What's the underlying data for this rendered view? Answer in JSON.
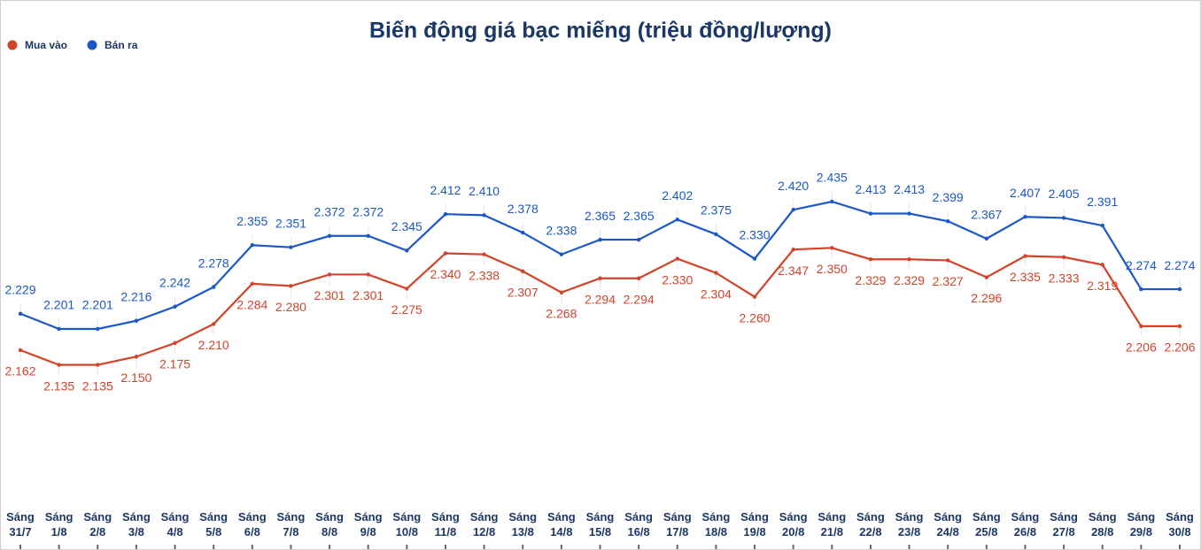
{
  "chart_data": {
    "type": "line",
    "title": "Biến động giá bạc miếng (triệu đồng/lượng)",
    "legend": "top-left",
    "categories": [
      "Sáng 31/7",
      "Sáng 1/8",
      "Sáng 2/8",
      "Sáng 3/8",
      "Sáng 4/8",
      "Sáng 5/8",
      "Sáng 6/8",
      "Sáng 7/8",
      "Sáng 8/8",
      "Sáng 9/8",
      "Sáng 10/8",
      "Sáng 11/8",
      "Sáng 12/8",
      "Sáng 13/8",
      "Sáng 14/8",
      "Sáng 15/8",
      "Sáng 16/8",
      "Sáng 17/8",
      "Sáng 18/8",
      "Sáng 19/8",
      "Sáng 20/8",
      "Sáng 21/8",
      "Sáng 22/8",
      "Sáng 23/8",
      "Sáng 24/8",
      "Sáng 25/8",
      "Sáng 26/8",
      "Sáng 27/8",
      "Sáng 28/8",
      "Sáng 29/8",
      "Sáng 30/8"
    ],
    "series": [
      {
        "name": "Mua vào",
        "color": "#d2432a",
        "values": [
          2.162,
          2.135,
          2.135,
          2.15,
          2.175,
          2.21,
          2.284,
          2.28,
          2.301,
          2.301,
          2.275,
          2.34,
          2.338,
          2.307,
          2.268,
          2.294,
          2.294,
          2.33,
          2.304,
          2.26,
          2.347,
          2.35,
          2.329,
          2.329,
          2.327,
          2.296,
          2.335,
          2.333,
          2.319,
          2.206,
          2.206
        ],
        "value_labels": [
          "2.162",
          "2.135",
          "2.135",
          "2.150",
          "2.175",
          "2.210",
          "2.284",
          "2.280",
          "2.301",
          "2.301",
          "2.275",
          "2.340",
          "2.338",
          "2.307",
          "2.268",
          "2.294",
          "2.294",
          "2.330",
          "2.304",
          "2.260",
          "2.347",
          "2.350",
          "2.329",
          "2.329",
          "2.327",
          "2.296",
          "2.335",
          "2.333",
          "2.319",
          "2.206",
          "2.206"
        ]
      },
      {
        "name": "Bán ra",
        "color": "#1a57c8",
        "values": [
          2.229,
          2.201,
          2.201,
          2.216,
          2.242,
          2.278,
          2.355,
          2.351,
          2.372,
          2.372,
          2.345,
          2.412,
          2.41,
          2.378,
          2.338,
          2.365,
          2.365,
          2.402,
          2.375,
          2.33,
          2.42,
          2.435,
          2.413,
          2.413,
          2.399,
          2.367,
          2.407,
          2.405,
          2.391,
          2.274,
          2.274
        ],
        "value_labels": [
          "2.229",
          "2.201",
          "2.201",
          "2.216",
          "2.242",
          "2.278",
          "2.355",
          "2.351",
          "2.372",
          "2.372",
          "2.345",
          "2.412",
          "2.410",
          "2.378",
          "2.338",
          "2.365",
          "2.365",
          "2.402",
          "2.375",
          "2.330",
          "2.420",
          "2.435",
          "2.413",
          "2.413",
          "2.399",
          "2.367",
          "2.407",
          "2.405",
          "2.391",
          "2.274",
          "2.274"
        ]
      }
    ]
  }
}
